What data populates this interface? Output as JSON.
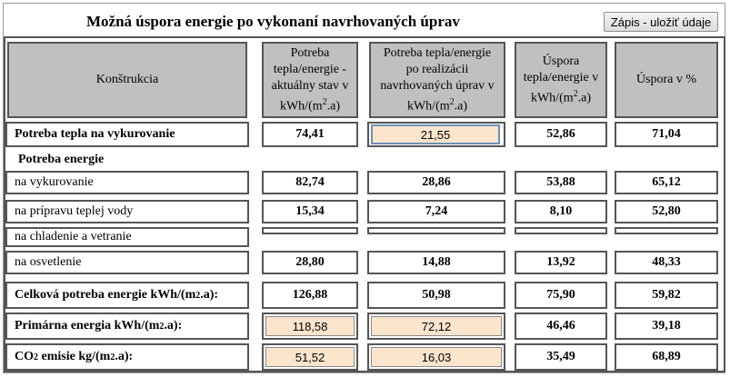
{
  "header": {
    "title": "Možná úspora energie po vykonaní navrhovaných úprav",
    "save_button": "Zápis - uložiť údaje"
  },
  "columns": {
    "c1": "Konštrukcia",
    "c2_l1": "Potreba",
    "c2_l2": "tepla/energie -",
    "c2_l3": "aktuálny stav v",
    "c2_l4": "kWh/(m",
    "c3_l1": "Potreba tepla/energie",
    "c3_l2": "po realizácii",
    "c3_l3": "navrhovaných úprav v",
    "c3_l4": "kWh/(m",
    "c4_l1": "Úspora",
    "c4_l2": "tepla/energie v",
    "c4_l3": "kWh/(m",
    "c5": "Úspora v %",
    "unit_sup": "2",
    "unit_tail": ".a)"
  },
  "rows": {
    "vykurovanie_potreba": {
      "label": "Potreba tepla na vykurovanie",
      "v1": "74,41",
      "v2": "21,55",
      "v3": "52,86",
      "v4": "71,04"
    },
    "potreba_energie": {
      "label": "Potreba energie"
    },
    "na_vykurovanie": {
      "label": "na vykurovanie",
      "v1": "82,74",
      "v2": "28,86",
      "v3": "53,88",
      "v4": "65,12"
    },
    "na_tv": {
      "label": "na prípravu teplej vody",
      "v1": "15,34",
      "v2": "7,24",
      "v3": "8,10",
      "v4": "52,80"
    },
    "na_chladenie": {
      "label": "na chladenie a vetranie"
    },
    "na_osvetlenie": {
      "label": "na osvetlenie",
      "v1": "28,80",
      "v2": "14,88",
      "v3": "13,92",
      "v4": "48,33"
    },
    "celkova": {
      "label": "Celková potreba energie kWh/(m",
      "sup": "2",
      "tail": ".a):",
      "v1": "126,88",
      "v2": "50,98",
      "v3": "75,90",
      "v4": "59,82"
    },
    "primarna": {
      "label": "Primárna energia kWh/(m",
      "sup": "2",
      "tail": ".a):",
      "v1": "118,58",
      "v2": "72,12",
      "v3": "46,46",
      "v4": "39,18"
    },
    "co2": {
      "label": "CO",
      "sub": "2",
      "tail": " emisie kg/(m",
      "sup": "2",
      "tail2": ".a):",
      "v1": "51,52",
      "v2": "16,03",
      "v3": "35,49",
      "v4": "68,89"
    }
  }
}
